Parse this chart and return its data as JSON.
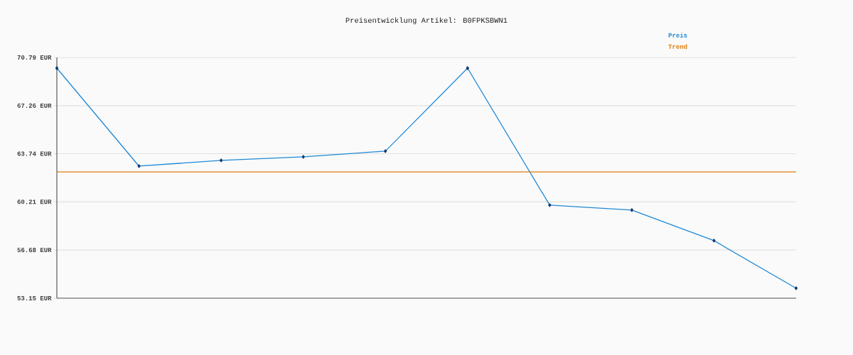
{
  "chart_data": {
    "type": "line",
    "title": "Preisentwicklung Artikel: B0FPKSBWN1",
    "categories": [
      null,
      null,
      null,
      null,
      null,
      null,
      null,
      null,
      null,
      null
    ],
    "series": [
      {
        "name": "Preis",
        "color": "#1f88d6",
        "values": [
          70.01,
          62.83,
          63.25,
          63.51,
          63.93,
          70.01,
          59.97,
          59.61,
          57.37,
          53.88
        ],
        "marker": "diamond"
      },
      {
        "name": "Trend",
        "color": "#dd7b0a",
        "values": [
          62.41,
          62.41,
          62.41,
          62.41,
          62.41,
          62.41,
          62.41,
          62.41,
          62.41,
          62.41
        ],
        "marker": "none"
      }
    ],
    "ylim": [
      53.15,
      70.79
    ],
    "yticks": [
      {
        "value": 53.15,
        "label": "53.15 EUR"
      },
      {
        "value": 56.68,
        "label": "56.68 EUR"
      },
      {
        "value": 60.21,
        "label": "60.21 EUR"
      },
      {
        "value": 63.74,
        "label": "63.74 EUR"
      },
      {
        "value": 67.26,
        "label": "67.26 EUR"
      },
      {
        "value": 70.79,
        "label": "70.79 EUR"
      }
    ],
    "grid": "y",
    "legend": "top right",
    "tick_labels": "y"
  }
}
